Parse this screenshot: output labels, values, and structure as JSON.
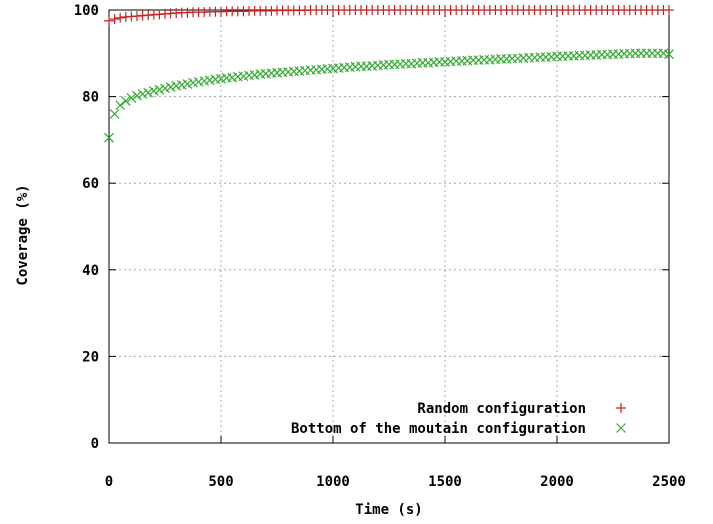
{
  "chart_data": {
    "type": "scatter",
    "title": "",
    "xlabel": "Time (s)",
    "ylabel": "Coverage (%)",
    "xlim": [
      0,
      2500
    ],
    "ylim": [
      0,
      100
    ],
    "xticks": [
      "0",
      "500",
      "1000",
      "1500",
      "2000",
      "2500"
    ],
    "yticks": [
      "0",
      "20",
      "40",
      "60",
      "80",
      "100"
    ],
    "grid": true,
    "legend_position": "bottom-right",
    "series": [
      {
        "name": "Random configuration",
        "marker": "+",
        "color": "#cc2222",
        "points": [
          [
            0,
            97.5
          ],
          [
            25,
            97.9
          ],
          [
            50,
            98.2
          ],
          [
            75,
            98.4
          ],
          [
            100,
            98.5
          ],
          [
            125,
            98.6
          ],
          [
            150,
            98.7
          ],
          [
            175,
            98.8
          ],
          [
            200,
            98.9
          ],
          [
            225,
            99.0
          ],
          [
            250,
            99.1
          ],
          [
            275,
            99.2
          ],
          [
            300,
            99.3
          ],
          [
            325,
            99.4
          ],
          [
            350,
            99.4
          ],
          [
            375,
            99.5
          ],
          [
            400,
            99.5
          ],
          [
            425,
            99.5
          ],
          [
            450,
            99.6
          ],
          [
            475,
            99.6
          ],
          [
            500,
            99.6
          ],
          [
            525,
            99.7
          ],
          [
            550,
            99.7
          ],
          [
            575,
            99.7
          ],
          [
            600,
            99.7
          ],
          [
            625,
            99.8
          ],
          [
            650,
            99.8
          ],
          [
            675,
            99.8
          ],
          [
            700,
            99.8
          ],
          [
            725,
            99.8
          ],
          [
            750,
            99.9
          ],
          [
            775,
            99.9
          ],
          [
            800,
            99.9
          ],
          [
            825,
            99.9
          ],
          [
            850,
            99.9
          ],
          [
            875,
            99.9
          ],
          [
            900,
            100
          ],
          [
            925,
            100
          ],
          [
            950,
            100
          ],
          [
            975,
            100
          ],
          [
            1000,
            100
          ],
          [
            1025,
            100
          ],
          [
            1050,
            100
          ],
          [
            1075,
            100
          ],
          [
            1100,
            100
          ],
          [
            1125,
            100
          ],
          [
            1150,
            100
          ],
          [
            1175,
            100
          ],
          [
            1200,
            100
          ],
          [
            1225,
            100
          ],
          [
            1250,
            100
          ],
          [
            1275,
            100
          ],
          [
            1300,
            100
          ],
          [
            1325,
            100
          ],
          [
            1350,
            100
          ],
          [
            1375,
            100
          ],
          [
            1400,
            100
          ],
          [
            1425,
            100
          ],
          [
            1450,
            100
          ],
          [
            1475,
            100
          ],
          [
            1500,
            100
          ],
          [
            1525,
            100
          ],
          [
            1550,
            100
          ],
          [
            1575,
            100
          ],
          [
            1600,
            100
          ],
          [
            1625,
            100
          ],
          [
            1650,
            100
          ],
          [
            1675,
            100
          ],
          [
            1700,
            100
          ],
          [
            1725,
            100
          ],
          [
            1750,
            100
          ],
          [
            1775,
            100
          ],
          [
            1800,
            100
          ],
          [
            1825,
            100
          ],
          [
            1850,
            100
          ],
          [
            1875,
            100
          ],
          [
            1900,
            100
          ],
          [
            1925,
            100
          ],
          [
            1950,
            100
          ],
          [
            1975,
            100
          ],
          [
            2000,
            100
          ],
          [
            2025,
            100
          ],
          [
            2050,
            100
          ],
          [
            2075,
            100
          ],
          [
            2100,
            100
          ],
          [
            2125,
            100
          ],
          [
            2150,
            100
          ],
          [
            2175,
            100
          ],
          [
            2200,
            100
          ],
          [
            2225,
            100
          ],
          [
            2250,
            100
          ],
          [
            2275,
            100
          ],
          [
            2300,
            100
          ],
          [
            2325,
            100
          ],
          [
            2350,
            100
          ],
          [
            2375,
            100
          ],
          [
            2400,
            100
          ],
          [
            2425,
            100
          ],
          [
            2450,
            100
          ],
          [
            2475,
            100
          ],
          [
            2500,
            100
          ]
        ]
      },
      {
        "name": "Bottom of the moutain configuration",
        "marker": "x",
        "color": "#33aa33",
        "points": [
          [
            0,
            70.5
          ],
          [
            25,
            76.0
          ],
          [
            50,
            78.0
          ],
          [
            75,
            79.0
          ],
          [
            100,
            79.7
          ],
          [
            125,
            80.2
          ],
          [
            150,
            80.6
          ],
          [
            175,
            80.9
          ],
          [
            200,
            81.3
          ],
          [
            225,
            81.6
          ],
          [
            250,
            81.9
          ],
          [
            275,
            82.2
          ],
          [
            300,
            82.5
          ],
          [
            325,
            82.7
          ],
          [
            350,
            82.9
          ],
          [
            375,
            83.2
          ],
          [
            400,
            83.4
          ],
          [
            425,
            83.6
          ],
          [
            450,
            83.8
          ],
          [
            475,
            84.0
          ],
          [
            500,
            84.1
          ],
          [
            525,
            84.3
          ],
          [
            550,
            84.4
          ],
          [
            575,
            84.6
          ],
          [
            600,
            84.7
          ],
          [
            625,
            84.9
          ],
          [
            650,
            85.0
          ],
          [
            675,
            85.2
          ],
          [
            700,
            85.3
          ],
          [
            725,
            85.4
          ],
          [
            750,
            85.5
          ],
          [
            775,
            85.6
          ],
          [
            800,
            85.7
          ],
          [
            825,
            85.8
          ],
          [
            850,
            85.9
          ],
          [
            875,
            86.0
          ],
          [
            900,
            86.1
          ],
          [
            925,
            86.2
          ],
          [
            950,
            86.3
          ],
          [
            975,
            86.4
          ],
          [
            1000,
            86.5
          ],
          [
            1025,
            86.6
          ],
          [
            1050,
            86.7
          ],
          [
            1075,
            86.8
          ],
          [
            1100,
            86.9
          ],
          [
            1125,
            87.0
          ],
          [
            1150,
            87.0
          ],
          [
            1175,
            87.1
          ],
          [
            1200,
            87.2
          ],
          [
            1225,
            87.3
          ],
          [
            1250,
            87.4
          ],
          [
            1275,
            87.4
          ],
          [
            1300,
            87.5
          ],
          [
            1325,
            87.6
          ],
          [
            1350,
            87.6
          ],
          [
            1375,
            87.7
          ],
          [
            1400,
            87.8
          ],
          [
            1425,
            87.8
          ],
          [
            1450,
            87.9
          ],
          [
            1475,
            88.0
          ],
          [
            1500,
            88.0
          ],
          [
            1525,
            88.1
          ],
          [
            1550,
            88.2
          ],
          [
            1575,
            88.2
          ],
          [
            1600,
            88.3
          ],
          [
            1625,
            88.4
          ],
          [
            1650,
            88.4
          ],
          [
            1675,
            88.5
          ],
          [
            1700,
            88.5
          ],
          [
            1725,
            88.6
          ],
          [
            1750,
            88.7
          ],
          [
            1775,
            88.7
          ],
          [
            1800,
            88.8
          ],
          [
            1825,
            88.8
          ],
          [
            1850,
            88.9
          ],
          [
            1875,
            89.0
          ],
          [
            1900,
            89.0
          ],
          [
            1925,
            89.1
          ],
          [
            1950,
            89.1
          ],
          [
            1975,
            89.2
          ],
          [
            2000,
            89.3
          ],
          [
            2025,
            89.3
          ],
          [
            2050,
            89.4
          ],
          [
            2075,
            89.4
          ],
          [
            2100,
            89.5
          ],
          [
            2125,
            89.5
          ],
          [
            2150,
            89.6
          ],
          [
            2175,
            89.6
          ],
          [
            2200,
            89.7
          ],
          [
            2225,
            89.7
          ],
          [
            2250,
            89.8
          ],
          [
            2275,
            89.8
          ],
          [
            2300,
            89.9
          ],
          [
            2325,
            89.9
          ],
          [
            2350,
            90.0
          ],
          [
            2375,
            90.0
          ],
          [
            2400,
            90.0
          ],
          [
            2425,
            90.0
          ],
          [
            2450,
            90.0
          ],
          [
            2475,
            90.0
          ],
          [
            2500,
            89.8
          ]
        ]
      }
    ]
  }
}
